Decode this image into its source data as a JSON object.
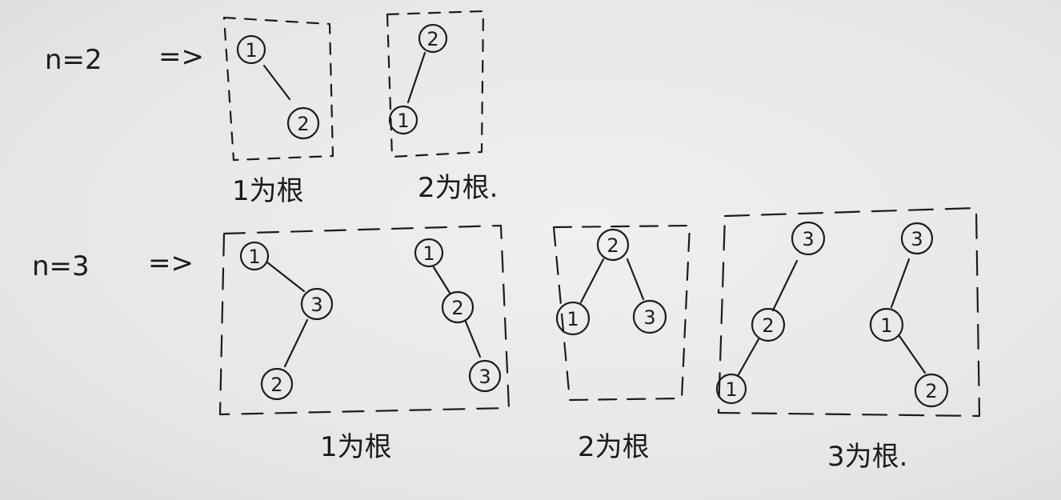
{
  "rows": [
    {
      "label": "n=2",
      "arrow": "=>"
    },
    {
      "label": "n=3",
      "arrow": "=>"
    }
  ],
  "groups": [
    {
      "caption": "1为根",
      "trees": [
        {
          "nodes": [
            "1",
            "2"
          ],
          "edges": [
            [
              0,
              1
            ]
          ]
        }
      ]
    },
    {
      "caption": "2为根.",
      "trees": [
        {
          "nodes": [
            "2",
            "1"
          ],
          "edges": [
            [
              0,
              1
            ]
          ]
        }
      ]
    },
    {
      "caption": "1为根",
      "trees": [
        {
          "nodes": [
            "1",
            "3",
            "2"
          ],
          "edges": [
            [
              0,
              1
            ],
            [
              1,
              2
            ]
          ]
        },
        {
          "nodes": [
            "1",
            "2",
            "3"
          ],
          "edges": [
            [
              0,
              1
            ],
            [
              1,
              2
            ]
          ]
        }
      ]
    },
    {
      "caption": "2为根",
      "trees": [
        {
          "nodes": [
            "2",
            "1",
            "3"
          ],
          "edges": [
            [
              0,
              1
            ],
            [
              0,
              2
            ]
          ]
        }
      ]
    },
    {
      "caption": "3为根.",
      "trees": [
        {
          "nodes": [
            "3",
            "2",
            "1"
          ],
          "edges": [
            [
              0,
              1
            ],
            [
              1,
              2
            ]
          ]
        },
        {
          "nodes": [
            "3",
            "1",
            "2"
          ],
          "edges": [
            [
              0,
              1
            ],
            [
              1,
              2
            ]
          ]
        }
      ]
    }
  ]
}
